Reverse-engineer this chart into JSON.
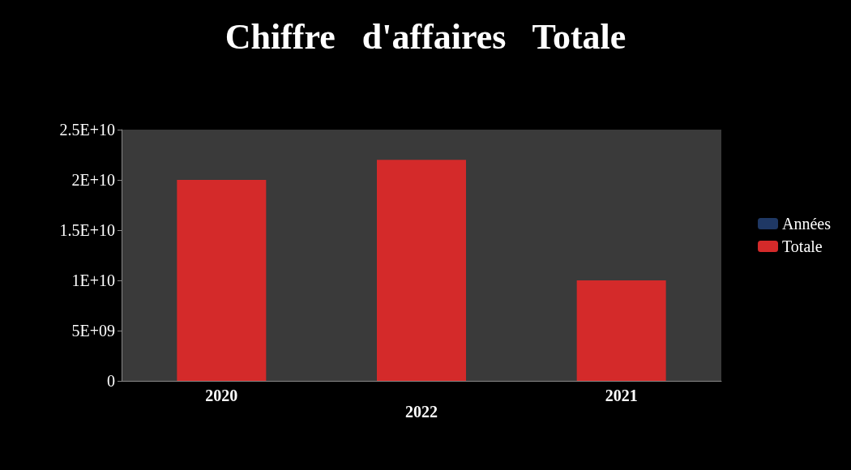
{
  "chart_data": {
    "type": "bar",
    "title": "Chiffre   d'affaires   Totale",
    "categories": [
      "2020",
      "2022",
      "2021"
    ],
    "series": [
      {
        "name": "Années",
        "color": "#1f3864",
        "values": [
          0,
          0,
          0
        ]
      },
      {
        "name": "Totale",
        "color": "#d42a2a",
        "values": [
          20000000000,
          22000000000,
          10000000000
        ]
      }
    ],
    "ylim": [
      0,
      25000000000
    ],
    "yticks": [
      0,
      {
        "value": 5000000000,
        "label": "5E+09"
      },
      {
        "value": 10000000000,
        "label": "1E+10"
      },
      {
        "value": 15000000000,
        "label": "1.5E+10"
      },
      {
        "value": 20000000000,
        "label": "2E+10"
      },
      {
        "value": 25000000000,
        "label": "2.5E+10"
      }
    ],
    "grid": false,
    "legend": "right"
  }
}
